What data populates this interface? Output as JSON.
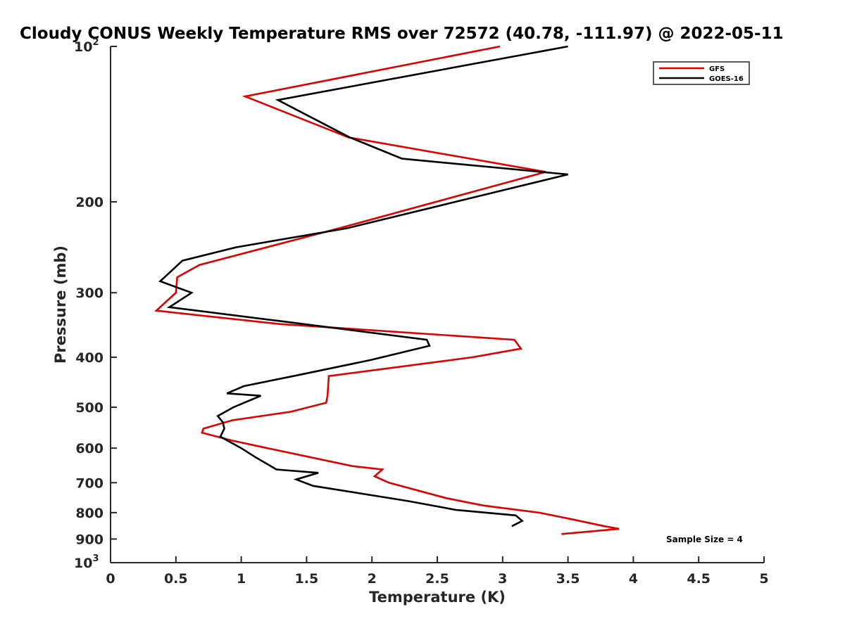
{
  "chart_data": {
    "type": "line",
    "title": "Cloudy CONUS Weekly Temperature RMS over 72572 (40.78, -111.97) @ 2022-05-11",
    "xlabel": "Temperature (K)",
    "ylabel": "Pressure (mb)",
    "xlim": [
      0,
      5
    ],
    "ylim": [
      100,
      1000
    ],
    "y_scale": "log",
    "y_reversed": true,
    "x_ticks": [
      "0",
      "0.5",
      "1",
      "1.5",
      "2",
      "2.5",
      "3",
      "3.5",
      "4",
      "4.5",
      "5"
    ],
    "y_ticks": [
      {
        "value": 100,
        "base": "10",
        "exp": "2"
      },
      {
        "value": 200,
        "label": "200"
      },
      {
        "value": 300,
        "label": "300"
      },
      {
        "value": 400,
        "label": "400"
      },
      {
        "value": 500,
        "label": "500"
      },
      {
        "value": 600,
        "label": "600"
      },
      {
        "value": 700,
        "label": "700"
      },
      {
        "value": 800,
        "label": "800"
      },
      {
        "value": 900,
        "label": "900"
      },
      {
        "value": 1000,
        "base": "10",
        "exp": "3"
      }
    ],
    "series": [
      {
        "name": "GFS",
        "color": "#e00000",
        "x": [
          2.98,
          1.03,
          1.82,
          3.33,
          1.75,
          0.68,
          0.51,
          0.5,
          0.35,
          1.3,
          3.09,
          3.14,
          2.77,
          1.67,
          1.66,
          1.65,
          1.38,
          0.93,
          0.71,
          0.7,
          0.93,
          1.2,
          1.85,
          2.08,
          2.02,
          2.13,
          2.57,
          2.85,
          3.28,
          3.54,
          3.78,
          3.89,
          3.45
        ],
        "y": [
          100,
          125,
          150,
          175,
          225,
          265,
          280,
          300,
          325,
          345,
          370,
          385,
          400,
          435,
          475,
          490,
          510,
          530,
          550,
          560,
          580,
          600,
          650,
          660,
          680,
          700,
          750,
          775,
          800,
          825,
          850,
          860,
          880
        ]
      },
      {
        "name": "GOES-16",
        "color": "#000000",
        "x": [
          3.5,
          1.28,
          1.83,
          2.23,
          3.5,
          1.81,
          0.96,
          0.55,
          0.38,
          0.62,
          0.45,
          1.28,
          2.42,
          2.44,
          1.99,
          1.4,
          1.02,
          0.89,
          1.15,
          0.94,
          0.82,
          0.86,
          0.87,
          0.84,
          1.0,
          1.11,
          1.27,
          1.59,
          1.42,
          1.55,
          2.28,
          2.64,
          3.1,
          3.15,
          3.07
        ],
        "y": [
          100,
          127,
          150,
          165,
          177,
          225,
          245,
          260,
          285,
          300,
          320,
          340,
          370,
          380,
          405,
          435,
          455,
          470,
          475,
          500,
          520,
          535,
          550,
          570,
          600,
          625,
          660,
          670,
          690,
          710,
          760,
          790,
          810,
          830,
          850
        ]
      }
    ],
    "legend": {
      "position": "top-right",
      "entries": [
        "GFS",
        "GOES-16"
      ]
    },
    "annotations": [
      {
        "text": "Sample Size = 4",
        "position": "bottom-right"
      }
    ],
    "grid": false
  }
}
